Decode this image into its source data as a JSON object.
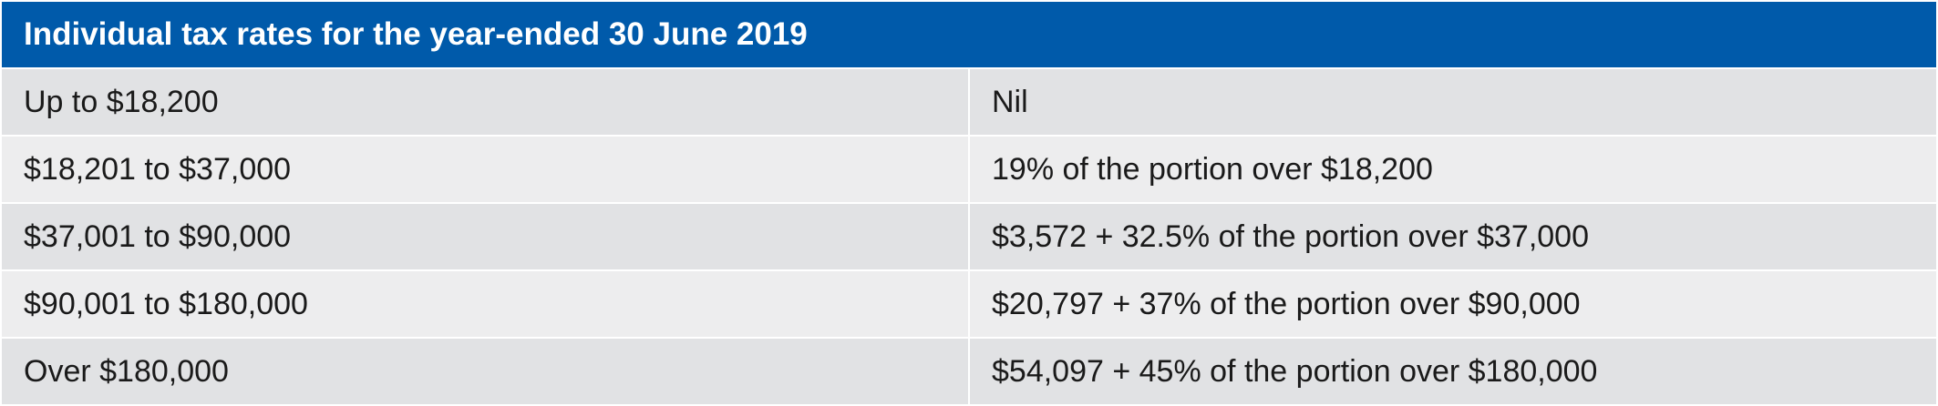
{
  "table": {
    "title": "Individual tax rates for the year-ended 30 June 2019",
    "rows": [
      {
        "income": "Up to $18,200",
        "rate": "Nil"
      },
      {
        "income": "$18,201 to $37,000",
        "rate": "19% of the portion over $18,200"
      },
      {
        "income": "$37,001 to $90,000",
        "rate": "$3,572 + 32.5% of the portion over $37,000"
      },
      {
        "income": "$90,001 to $180,000",
        "rate": "$20,797 + 37% of the portion over $90,000"
      },
      {
        "income": "Over $180,000",
        "rate": "$54,097 + 45% of the portion over $180,000"
      }
    ]
  },
  "colors": {
    "header_background": "#005aaa",
    "row_dark": "#e1e2e4",
    "row_light": "#ededee"
  }
}
